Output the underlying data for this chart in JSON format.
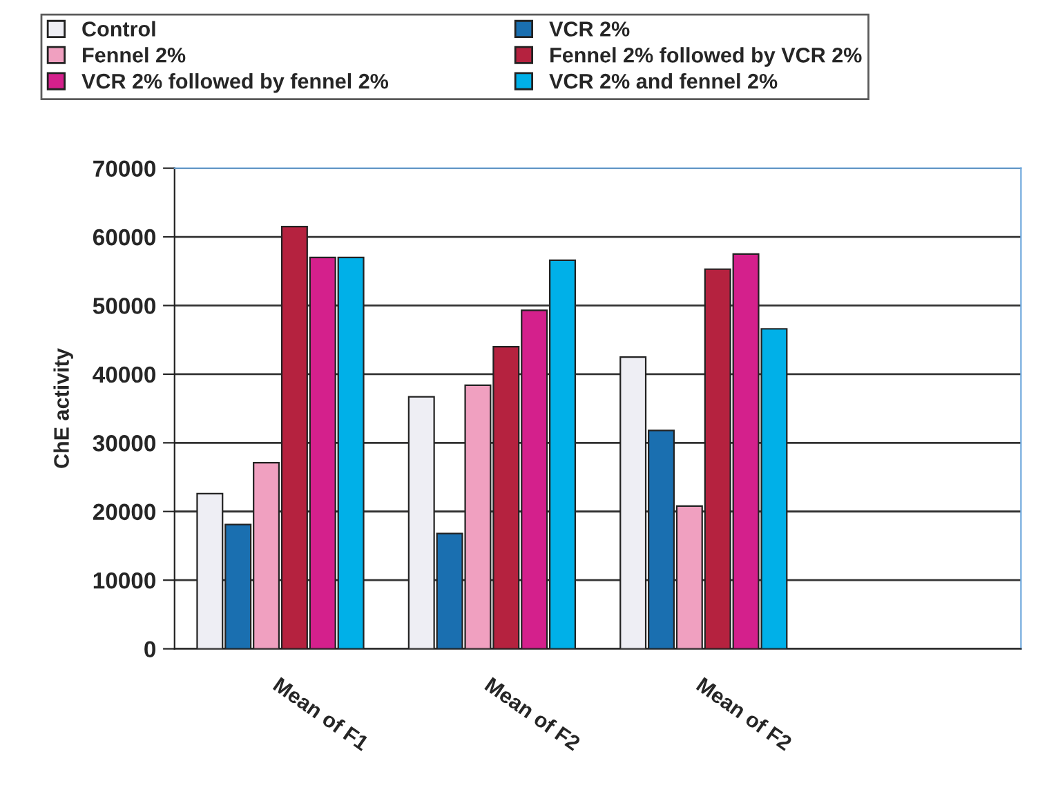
{
  "chart_data": {
    "type": "bar",
    "ylabel": "ChE activity",
    "categories": [
      "Mean of F1",
      "Mean of F2",
      "Mean of F2",
      null
    ],
    "series": [
      {
        "name": "Control",
        "color": "#eeeef4",
        "values": [
          22600,
          36700,
          42500,
          null
        ]
      },
      {
        "name": "VCR 2%",
        "color": "#1a6fb0",
        "values": [
          18100,
          16800,
          31800,
          null
        ]
      },
      {
        "name": "Fennel 2%",
        "color": "#f0a0c0",
        "values": [
          27100,
          38400,
          20800,
          null
        ]
      },
      {
        "name": "Fennel 2% followed by VCR 2%",
        "color": "#b5223f",
        "values": [
          61500,
          44000,
          55300,
          null
        ]
      },
      {
        "name": "VCR 2% followed by fennel 2%",
        "color": "#d4208c",
        "values": [
          57000,
          49300,
          57500,
          null
        ]
      },
      {
        "name": "VCR 2% and fennel 2%",
        "color": "#00b0e8",
        "values": [
          57000,
          56600,
          46600,
          null
        ]
      }
    ],
    "ylim": [
      0,
      70000
    ],
    "yticks": [
      0,
      10000,
      20000,
      30000,
      40000,
      50000,
      60000,
      70000
    ],
    "grid": "y",
    "legend": "top"
  }
}
